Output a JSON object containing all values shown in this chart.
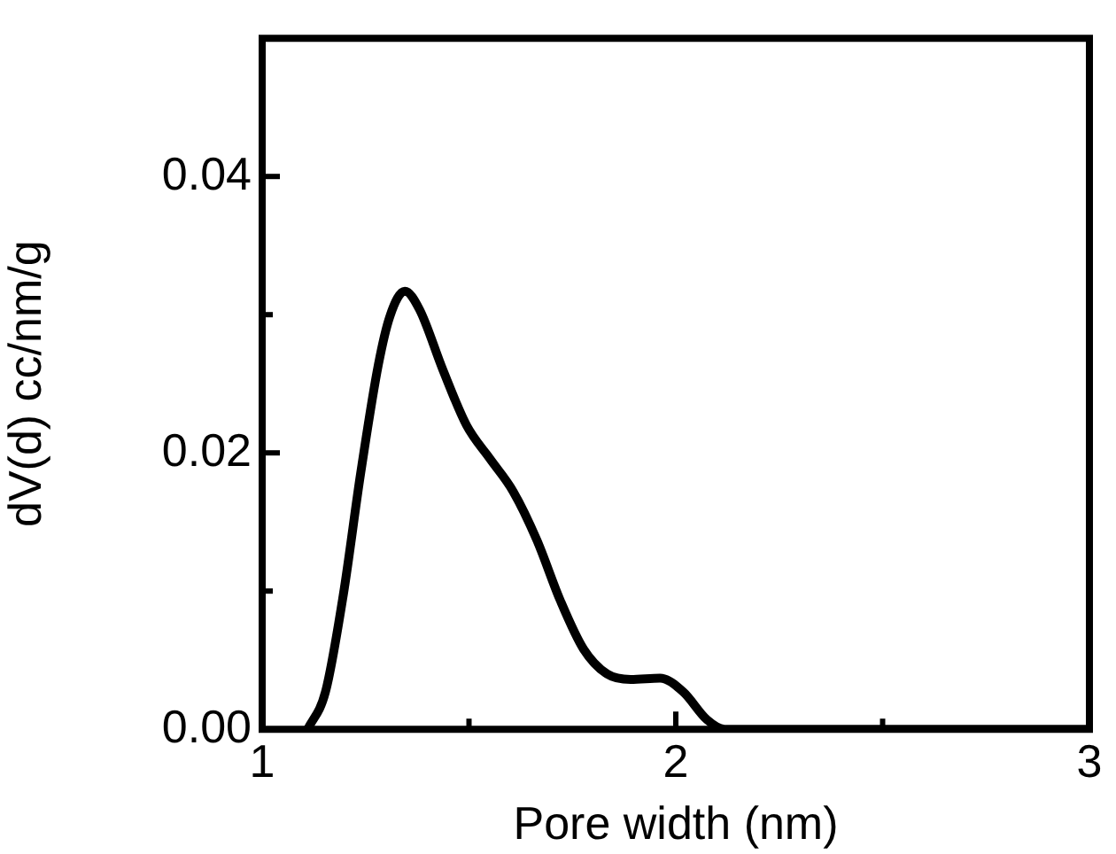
{
  "chart_data": {
    "type": "line",
    "xlabel": "Pore width (nm)",
    "ylabel": "dV(d) cc/nm/g",
    "x": [
      1.11,
      1.153,
      1.196,
      1.238,
      1.281,
      1.309,
      1.345,
      1.38,
      1.437,
      1.494,
      1.55,
      1.607,
      1.664,
      1.721,
      1.777,
      1.834,
      1.891,
      1.962,
      2.018,
      2.075,
      2.118,
      3
    ],
    "series": [
      {
        "color": "#000000",
        "values": [
          0,
          0.0027,
          0.0097,
          0.0185,
          0.0264,
          0.0299,
          0.0317,
          0.0304,
          0.026,
          0.022,
          0.0196,
          0.0172,
          0.0137,
          0.0093,
          0.0058,
          0.004,
          0.0036,
          0.0037,
          0.0027,
          0.0007,
          0,
          0
        ]
      }
    ],
    "xlim": [
      1,
      3
    ],
    "xticks": [
      1,
      {
        "value": 1.5,
        "label": null
      },
      2,
      {
        "value": 2.5,
        "label": null
      },
      3
    ],
    "ylim": [
      0,
      0.05
    ],
    "yticks": [
      {
        "value": 0,
        "label": "0.00"
      },
      {
        "value": 0.01,
        "label": null
      },
      {
        "value": 0.02,
        "label": "0.02"
      },
      {
        "value": 0.03,
        "label": null
      },
      {
        "value": 0.04,
        "label": "0.04"
      }
    ],
    "grid": false,
    "legend": false,
    "marker": "none",
    "line_style": "solid"
  }
}
